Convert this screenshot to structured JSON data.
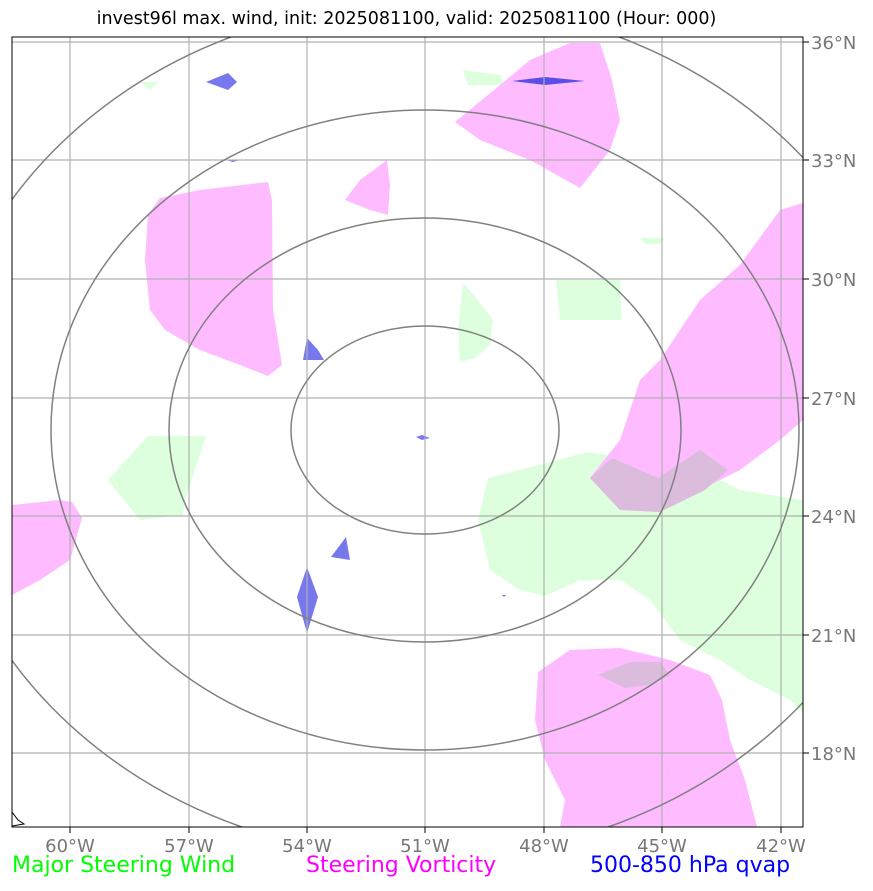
{
  "title": "invest96l max. wind, init: 2025081100, valid: 2025081100 (Hour: 000)",
  "lat_labels": [
    "36°N",
    "33°N",
    "30°N",
    "27°N",
    "24°N",
    "21°N",
    "18°N"
  ],
  "lon_labels": [
    "60°W",
    "57°W",
    "54°W",
    "51°W",
    "48°W",
    "45°W",
    "42°W"
  ],
  "legend": [
    {
      "label": "Major Steering Wind",
      "color": "#00ff00"
    },
    {
      "label": "Steering Vorticity",
      "color": "#ff00ff"
    },
    {
      "label": "500-850 hPa qvap",
      "color": "#0000ff"
    }
  ],
  "layers": {
    "steering_wind_color": "#ddffdd",
    "vorticity_color": "#ffbbff",
    "overlap_color": "#dcbcdc",
    "qvap_color": "#7777ee",
    "gridline_color": "#b0b0b0",
    "range_ring_color": "#808080"
  }
}
